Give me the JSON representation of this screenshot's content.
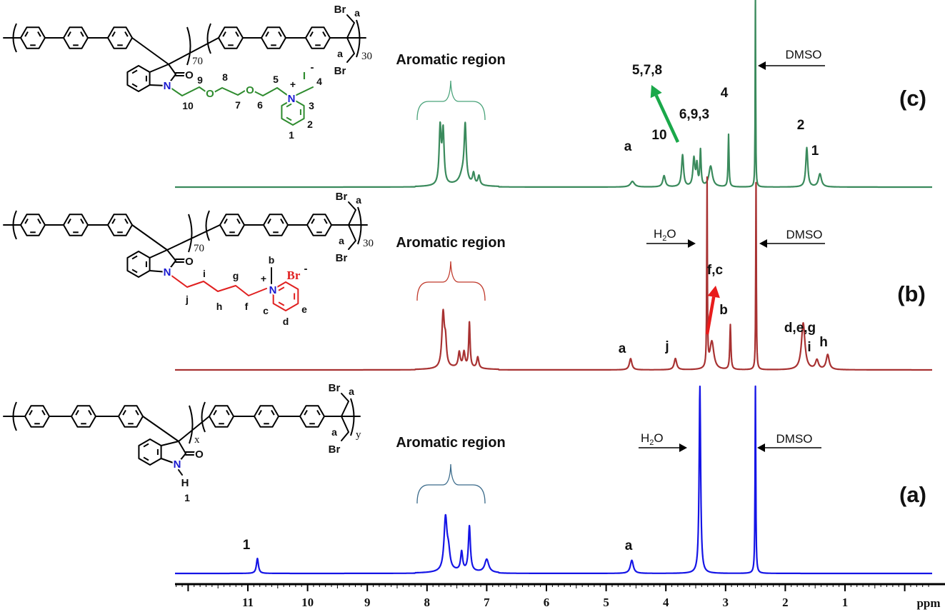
{
  "chart_data": {
    "type": "line",
    "title": "",
    "xlabel": "ppm",
    "ylabel": "",
    "x_reversed": true,
    "xlim": [
      12.2,
      -0.4
    ],
    "x_ticks": [
      "11",
      "10",
      "9",
      "8",
      "7",
      "6",
      "5",
      "4",
      "3",
      "2",
      "1"
    ],
    "grid": false,
    "series": [
      {
        "name": "(c)",
        "color": "#3a8a5c",
        "peaks": [
          {
            "ppm": 7.78,
            "intensity": 30,
            "width": 0.02
          },
          {
            "ppm": 7.73,
            "intensity": 28,
            "width": 0.02
          },
          {
            "ppm": 7.4,
            "intensity": 6,
            "width": 0.06
          },
          {
            "ppm": 7.36,
            "intensity": 29,
            "width": 0.02
          },
          {
            "ppm": 7.22,
            "intensity": 6,
            "width": 0.02
          },
          {
            "ppm": 7.13,
            "intensity": 5,
            "width": 0.02
          },
          {
            "ppm": 4.56,
            "intensity": 3,
            "width": 0.04
          },
          {
            "ppm": 4.03,
            "intensity": 6,
            "width": 0.025
          },
          {
            "ppm": 3.72,
            "intensity": 17,
            "width": 0.02
          },
          {
            "ppm": 3.53,
            "intensity": 15,
            "width": 0.02
          },
          {
            "ppm": 3.48,
            "intensity": 11,
            "width": 0.015
          },
          {
            "ppm": 3.42,
            "intensity": 19,
            "width": 0.012
          },
          {
            "ppm": 3.25,
            "intensity": 11,
            "width": 0.035
          },
          {
            "ppm": 2.95,
            "intensity": 28,
            "width": 0.009
          },
          {
            "ppm": 2.5,
            "intensity": 100,
            "width": 0.005
          },
          {
            "ppm": 1.64,
            "intensity": 21,
            "width": 0.02
          },
          {
            "ppm": 1.42,
            "intensity": 7,
            "width": 0.03
          }
        ]
      },
      {
        "name": "(b)",
        "color": "#a83232",
        "peaks": [
          {
            "ppm": 7.73,
            "intensity": 29,
            "width": 0.025
          },
          {
            "ppm": 7.69,
            "intensity": 12,
            "width": 0.02
          },
          {
            "ppm": 7.46,
            "intensity": 8,
            "width": 0.02
          },
          {
            "ppm": 7.38,
            "intensity": 8,
            "width": 0.02
          },
          {
            "ppm": 7.29,
            "intensity": 24,
            "width": 0.014
          },
          {
            "ppm": 7.15,
            "intensity": 6,
            "width": 0.02
          },
          {
            "ppm": 4.59,
            "intensity": 6,
            "width": 0.025
          },
          {
            "ppm": 3.84,
            "intensity": 6,
            "width": 0.025
          },
          {
            "ppm": 3.31,
            "intensity": 100,
            "width": 0.006
          },
          {
            "ppm": 3.23,
            "intensity": 15,
            "width": 0.04
          },
          {
            "ppm": 2.92,
            "intensity": 24,
            "width": 0.011
          },
          {
            "ppm": 2.49,
            "intensity": 100,
            "width": 0.006
          },
          {
            "ppm": 1.7,
            "intensity": 25,
            "width": 0.035
          },
          {
            "ppm": 1.47,
            "intensity": 5,
            "width": 0.03
          },
          {
            "ppm": 1.29,
            "intensity": 8,
            "width": 0.03
          }
        ]
      },
      {
        "name": "(a)",
        "color": "#1515e6",
        "peaks": [
          {
            "ppm": 10.84,
            "intensity": 8,
            "width": 0.02
          },
          {
            "ppm": 7.69,
            "intensity": 28,
            "width": 0.03
          },
          {
            "ppm": 7.64,
            "intensity": 9,
            "width": 0.03
          },
          {
            "ppm": 7.42,
            "intensity": 10,
            "width": 0.02
          },
          {
            "ppm": 7.29,
            "intensity": 24,
            "width": 0.02
          },
          {
            "ppm": 7.0,
            "intensity": 7,
            "width": 0.04
          },
          {
            "ppm": 4.57,
            "intensity": 7,
            "width": 0.03
          },
          {
            "ppm": 3.43,
            "intensity": 100,
            "width": 0.015
          },
          {
            "ppm": 2.5,
            "intensity": 100,
            "width": 0.007
          }
        ]
      }
    ]
  },
  "panels": {
    "c": {
      "label": "(c)",
      "aromatic": "Aromatic region",
      "dmso": "DMSO",
      "peaks": {
        "p578": "5,7,8",
        "p693": "6,9,3",
        "p4": "4",
        "p10": "10",
        "pa": "a",
        "p2": "2",
        "p1": "1"
      }
    },
    "b": {
      "label": "(b)",
      "aromatic": "Aromatic region",
      "dmso": "DMSO",
      "h2o": {
        "h": "H",
        "sub": "2",
        "o": "O"
      },
      "peaks": {
        "pfc": "f,c",
        "pb": "b",
        "pdeg": "d,e,g",
        "pi": "i",
        "ph": "h",
        "pj": "j",
        "pa": "a"
      }
    },
    "a": {
      "label": "(a)",
      "aromatic": "Aromatic region",
      "dmso": "DMSO",
      "h2o": {
        "h": "H",
        "sub": "2",
        "o": "O"
      },
      "peaks": {
        "p1": "1",
        "pa": "a"
      }
    }
  },
  "structures": {
    "c": {
      "br_top": "Br",
      "a_top": "a",
      "a_bottom": "a",
      "br_bottom": "Br",
      "n_block": "70",
      "m_block": "30",
      "o_carbonyl": "O",
      "n_amide": "N",
      "o_ether1": "O",
      "o_ether2": "O",
      "n_plus": "N",
      "plus": "+",
      "anion": "I",
      "minus": "-",
      "pos": [
        "1",
        "2",
        "3",
        "4",
        "5",
        "6",
        "7",
        "8",
        "9",
        "10"
      ]
    },
    "b": {
      "br_top": "Br",
      "a_top": "a",
      "a_bottom": "a",
      "br_bottom": "Br",
      "n_block": "70",
      "m_block": "30",
      "o_carbonyl": "O",
      "n_amide": "N",
      "n_plus": "N",
      "plus": "+",
      "anion": "Br",
      "minus": "-",
      "pos": {
        "b": "b",
        "c": "c",
        "d": "d",
        "e": "e",
        "f": "f",
        "g": "g",
        "h": "h",
        "i": "i",
        "j": "j"
      }
    },
    "a": {
      "br_top": "Br",
      "a_top": "a",
      "a_bottom": "a",
      "br_bottom": "Br",
      "n_block": "x",
      "m_block": "y",
      "o_carbonyl": "O",
      "n_amide": "N",
      "h": "H",
      "pos1": "1"
    }
  },
  "colors": {
    "green_chain": "#2e8b2e",
    "red_chain": "#e02020",
    "nitrogen": "#1a1ad0",
    "green_arrow": "#1aa84a",
    "red_arrow": "#e81c1c",
    "brace_c": "#4aa37a",
    "brace_b": "#c0392b",
    "brace_a": "#3a6a8a"
  }
}
